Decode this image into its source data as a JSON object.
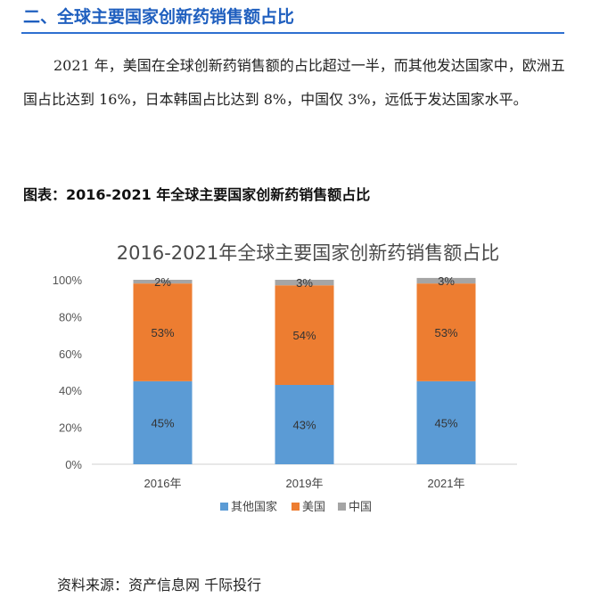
{
  "heading": "二、全球主要国家创新药销售额占比",
  "paragraph": "2021 年，美国在全球创新药销售额的占比超过一半，而其他发达国家中，欧洲五国占比达到 16%，日本韩国占比达到 8%，中国仅 3%，远低于发达国家水平。",
  "caption": "图表：2016-2021 年全球主要国家创新药销售额占比",
  "source": "资料来源：资产信息网  千际投行",
  "colors": {
    "others": "#5b9bd5",
    "usa": "#ed7d31",
    "china": "#a5a5a5",
    "accent": "#1f5fbf"
  },
  "chart_data": {
    "type": "bar",
    "stacked": true,
    "title": "2016-2021年全球主要国家创新药销售额占比",
    "categories": [
      "2016年",
      "2019年",
      "2021年"
    ],
    "series": [
      {
        "name": "其他国家",
        "values": [
          45,
          43,
          45
        ],
        "labels": [
          "45%",
          "43%",
          "45%"
        ],
        "color": "#5b9bd5"
      },
      {
        "name": "美国",
        "values": [
          53,
          54,
          53
        ],
        "labels": [
          "53%",
          "54%",
          "53%"
        ],
        "color": "#ed7d31"
      },
      {
        "name": "中国",
        "values": [
          2,
          3,
          3
        ],
        "labels": [
          "2%",
          "3%",
          "3%"
        ],
        "color": "#a5a5a5"
      }
    ],
    "yticks": [
      "0%",
      "20%",
      "40%",
      "60%",
      "80%",
      "100%"
    ],
    "ylim": [
      0,
      100
    ],
    "grid": false,
    "legend": "bottom"
  }
}
